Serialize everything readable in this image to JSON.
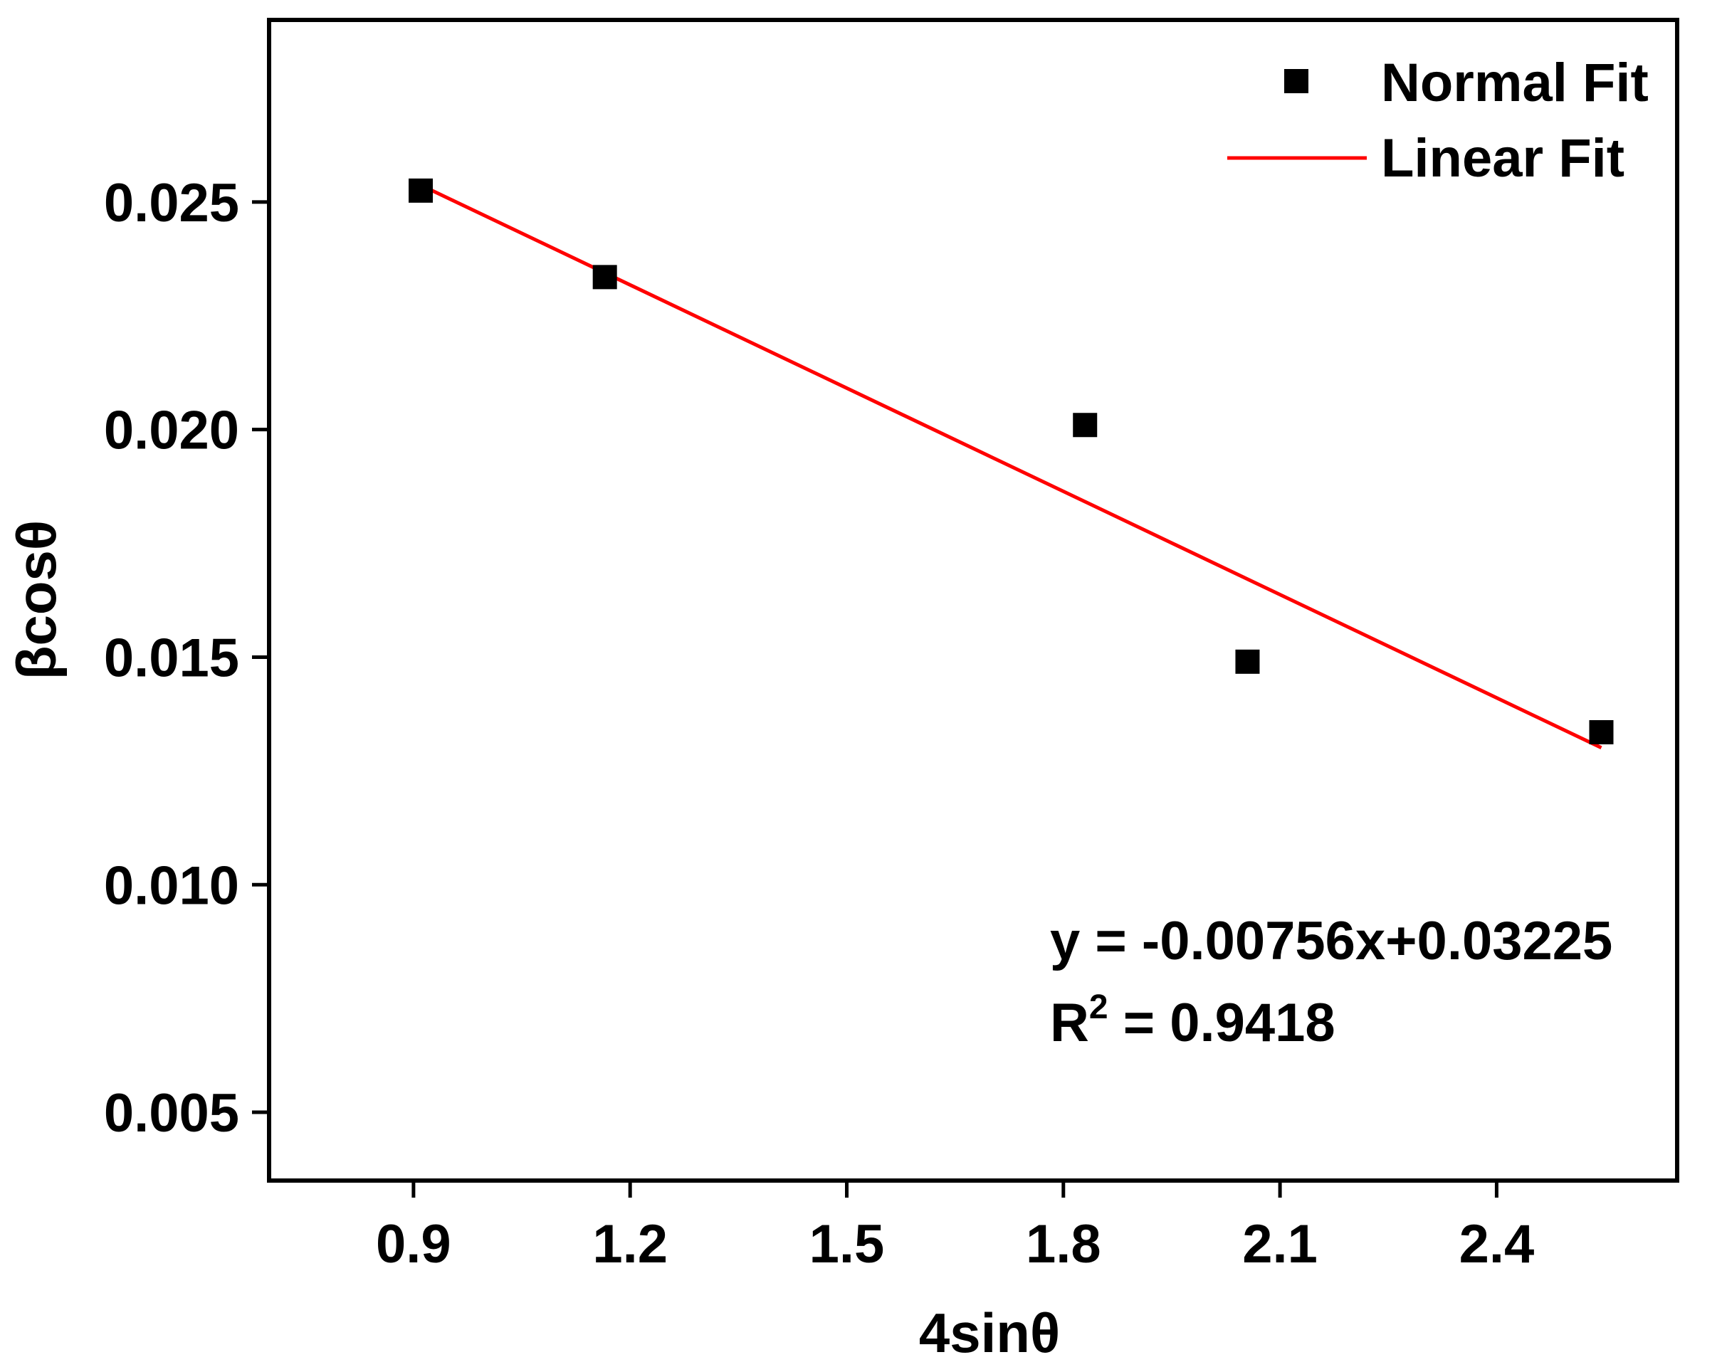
{
  "chart_data": {
    "type": "scatter",
    "title": "",
    "xlabel": "4sinθ",
    "ylabel": "βcosθ",
    "xlim": [
      0.7,
      2.65
    ],
    "ylim": [
      0.0035,
      0.029
    ],
    "xticks": [
      0.9,
      1.2,
      1.5,
      1.8,
      2.1,
      2.4
    ],
    "xtick_labels": [
      "0.9",
      "1.2",
      "1.5",
      "1.8",
      "2.1",
      "2.4"
    ],
    "yticks": [
      0.005,
      0.01,
      0.015,
      0.02,
      0.025
    ],
    "ytick_labels": [
      "0.005",
      "0.010",
      "0.015",
      "0.020",
      "0.025"
    ],
    "grid": false,
    "legend_position": "top-right",
    "series": [
      {
        "name": "Normal Fit",
        "kind": "scatter",
        "marker": "square",
        "color": "#000000",
        "x": [
          0.91,
          1.165,
          1.83,
          2.055,
          2.545
        ],
        "y": [
          0.02525,
          0.02335,
          0.0201,
          0.0149,
          0.01335
        ]
      },
      {
        "name": "Linear Fit",
        "kind": "line",
        "color": "#ff0000",
        "slope": -0.00756,
        "intercept": 0.03225,
        "x_range": [
          0.91,
          2.545
        ]
      }
    ],
    "annotations": {
      "equation": "y = -0.00756x+0.03225",
      "r2_prefix": "R",
      "r2_sup": "2",
      "r2_suffix": " = 0.9418"
    }
  }
}
